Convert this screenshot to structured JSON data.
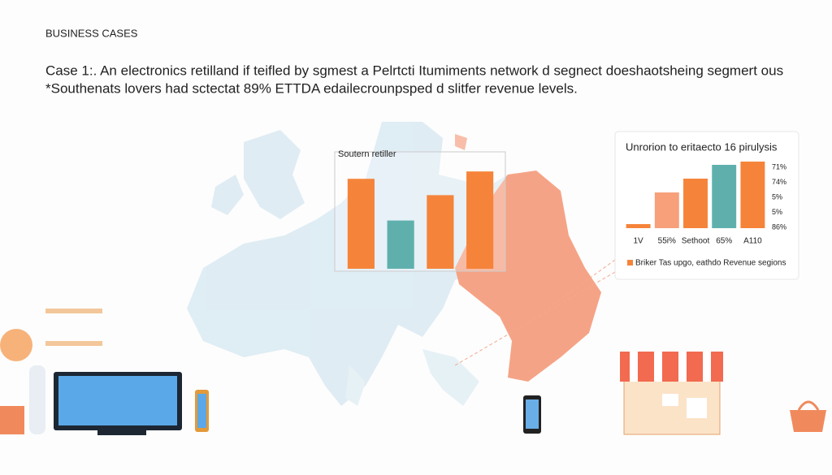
{
  "header": {
    "title": "BUSINESS CASES",
    "line1": "Case 1:. An electronics retilland if teifled by sgmest a Pelrtcti Itumiments network d segnect doeshaotsheing segmert ous",
    "line2": "*Southenats lovers had sctectat 89% ETTDA edailecrounpsped d slitfer revenue levels."
  },
  "chart_data": [
    {
      "type": "bar",
      "title": "Soutern retiller",
      "categories": [
        null,
        null,
        null,
        null
      ],
      "values": [
        110,
        59,
        90,
        119
      ],
      "colors": [
        "#f5843a",
        "#5fb0ad",
        "#f5843a",
        "#f5843a"
      ],
      "ylim": [
        0,
        140
      ]
    },
    {
      "type": "bar",
      "title": "Unrorion to eritaecto 16 pirulysis",
      "categories": [
        "1V",
        "55i%",
        "Sethoot",
        "65%",
        "A110"
      ],
      "values": [
        5,
        44,
        61,
        78,
        82
      ],
      "colors": [
        "#f5843a",
        "#f7a07a",
        "#f5843a",
        "#5fb0ad",
        "#f5843a"
      ],
      "ylim": [
        0,
        90
      ],
      "side_labels": [
        "71%",
        "74%",
        "5%",
        "5%",
        "86%"
      ],
      "legend": "Briker Tas upgo, eathdo Revenue segions",
      "legend_color": "#f5843a"
    }
  ]
}
